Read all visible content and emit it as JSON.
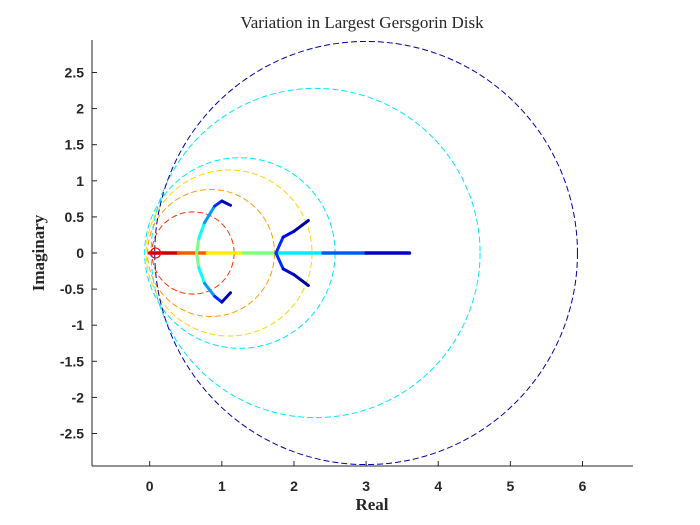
{
  "chart_data": {
    "type": "scatter",
    "title": "Variation in Largest Gersgorin Disk",
    "xlabel": "Real",
    "ylabel": "Imaginary",
    "xlim": [
      -0.8,
      6.7
    ],
    "ylim": [
      -2.95,
      2.95
    ],
    "xticks": [
      0,
      1,
      2,
      3,
      4,
      5,
      6
    ],
    "yticks": [
      -2.5,
      -2,
      -1.5,
      -1,
      -0.5,
      0,
      0.5,
      1,
      1.5,
      2,
      2.5
    ],
    "grid": false,
    "legend": "none",
    "colormap": "jet",
    "disks": [
      {
        "center": 0.08,
        "radius": 0.07,
        "color": "#ff2a00"
      },
      {
        "center": 0.6,
        "radius": 0.57,
        "color": "#ff3300"
      },
      {
        "center": 0.85,
        "radius": 0.88,
        "color": "#ff9900"
      },
      {
        "center": 1.1,
        "radius": 1.15,
        "color": "#ffd400"
      },
      {
        "center": 1.25,
        "radius": 1.32,
        "color": "#00e6ff"
      },
      {
        "center": 2.3,
        "radius": 2.28,
        "color": "#00e6ff"
      },
      {
        "center": 3.0,
        "radius": 2.93,
        "color": "#0000a0"
      }
    ],
    "eigen_paths": [
      {
        "name": "",
        "points": [
          [
            0.0,
            0.0
          ],
          [
            0.4,
            0.0
          ],
          [
            0.8,
            0.0
          ],
          [
            1.3,
            0.0
          ],
          [
            1.8,
            0.0
          ],
          [
            2.4,
            0.0
          ],
          [
            3.0,
            0.0
          ],
          [
            3.6,
            0.0
          ]
        ]
      },
      {
        "name": "",
        "points": [
          [
            0.65,
            0.0
          ],
          [
            0.68,
            0.2
          ],
          [
            0.76,
            0.42
          ],
          [
            0.9,
            0.65
          ],
          [
            1.0,
            0.72
          ],
          [
            1.12,
            0.66
          ]
        ]
      },
      {
        "name": "",
        "points": [
          [
            0.65,
            0.0
          ],
          [
            0.68,
            -0.2
          ],
          [
            0.76,
            -0.42
          ],
          [
            0.9,
            -0.6
          ],
          [
            1.0,
            -0.68
          ],
          [
            1.12,
            -0.55
          ]
        ]
      },
      {
        "name": "",
        "points": [
          [
            1.75,
            0.0
          ],
          [
            1.85,
            0.22
          ],
          [
            2.0,
            0.3
          ],
          [
            2.2,
            0.45
          ]
        ]
      },
      {
        "name": "",
        "points": [
          [
            1.75,
            0.0
          ],
          [
            1.85,
            -0.22
          ],
          [
            2.0,
            -0.3
          ],
          [
            2.2,
            -0.45
          ]
        ]
      }
    ]
  }
}
